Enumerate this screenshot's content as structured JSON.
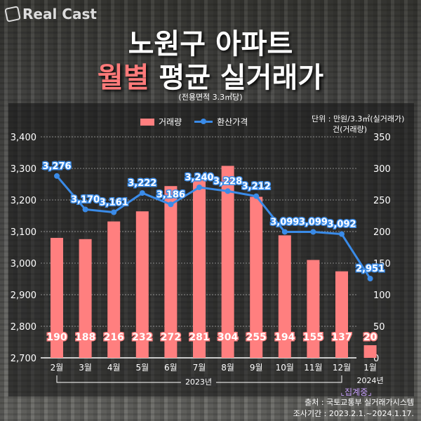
{
  "brand": "Real Cast",
  "title_line1": "노원구 아파트",
  "title_line2_highlight": "월별",
  "title_line2_rest": " 평균 실거래가",
  "subtitle": "(전용면적 3.3㎡당)",
  "unit_line1": "단위 : 만원/3.3㎡(실거래가)",
  "unit_line2": "건(거래량)",
  "source": "출처 : 국토교통부 실거래가시스템",
  "period": "조사기간 : 2023.2.1.~2024.1.17.",
  "colors": {
    "bar": "#ff7f7f",
    "line": "#3a8be8",
    "pending": "#c9a2ff"
  },
  "chart_data": {
    "type": "bar+line",
    "categories": [
      "2월",
      "3월",
      "4월",
      "5월",
      "6월",
      "7월",
      "8월",
      "9월",
      "10월",
      "11월",
      "12월",
      "1월"
    ],
    "series": [
      {
        "name": "거래량",
        "type": "bar",
        "axis": "right",
        "values": [
          190,
          188,
          216,
          232,
          272,
          281,
          304,
          255,
          194,
          155,
          137,
          20
        ]
      },
      {
        "name": "환산가격",
        "type": "line",
        "axis": "left",
        "values": [
          3276,
          3170,
          3161,
          3222,
          3186,
          3240,
          3228,
          3212,
          3099,
          3099,
          3092,
          2951
        ]
      }
    ],
    "left_axis": {
      "range": [
        2700,
        3400
      ],
      "ticks": [
        "2,700",
        "2,800",
        "2,900",
        "3,000",
        "3,100",
        "3,200",
        "3,300",
        "3,400"
      ]
    },
    "right_axis": {
      "range": [
        0,
        350
      ],
      "ticks": [
        "0",
        "50",
        "100",
        "150",
        "200",
        "250",
        "300",
        "350"
      ]
    },
    "year_labels": [
      "2023년",
      "2024년"
    ],
    "annotation": "집계중",
    "grid": true,
    "legend_position": "top-center"
  }
}
